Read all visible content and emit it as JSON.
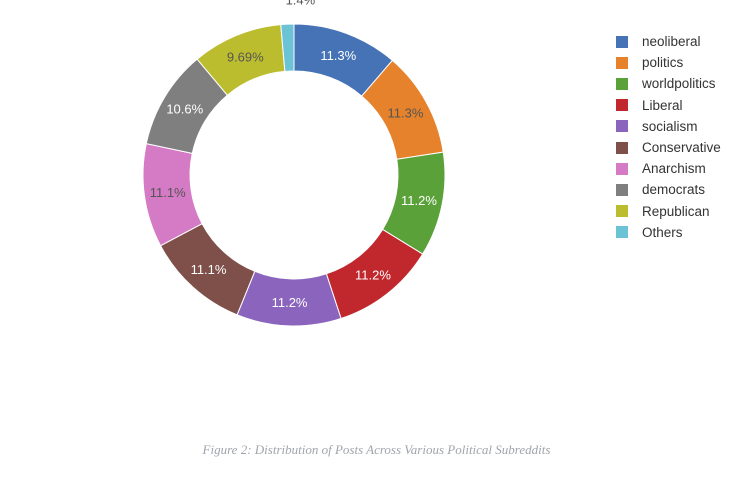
{
  "chart_data": {
    "type": "pie",
    "variant": "donut",
    "categories": [
      "neoliberal",
      "politics",
      "worldpolitics",
      "Liberal",
      "socialism",
      "Conservative",
      "Anarchism",
      "democrats",
      "Republican",
      "Others"
    ],
    "values": [
      11.3,
      11.3,
      11.2,
      11.2,
      11.2,
      11.1,
      11.1,
      10.6,
      9.69,
      1.4
    ],
    "data_labels": [
      "11.3%",
      "11.3%",
      "11.2%",
      "11.2%",
      "11.2%",
      "11.1%",
      "11.1%",
      "10.6%",
      "9.69%",
      "1.4%"
    ],
    "colors": [
      "#4573b5",
      "#e5822b",
      "#5ba13a",
      "#c0282e",
      "#8b64bd",
      "#7e5049",
      "#d57ac4",
      "#7f7f7f",
      "#bcbd2e",
      "#6cc3d6"
    ],
    "label_colors": [
      "#ffffff",
      "#555555",
      "#ffffff",
      "#ffffff",
      "#ffffff",
      "#ffffff",
      "#555555",
      "#ffffff",
      "#555555",
      "#555555"
    ],
    "order": "clockwise from top",
    "legend_position": "right"
  },
  "caption": "Figure 2: Distribution of Posts Across Various Political Subreddits"
}
